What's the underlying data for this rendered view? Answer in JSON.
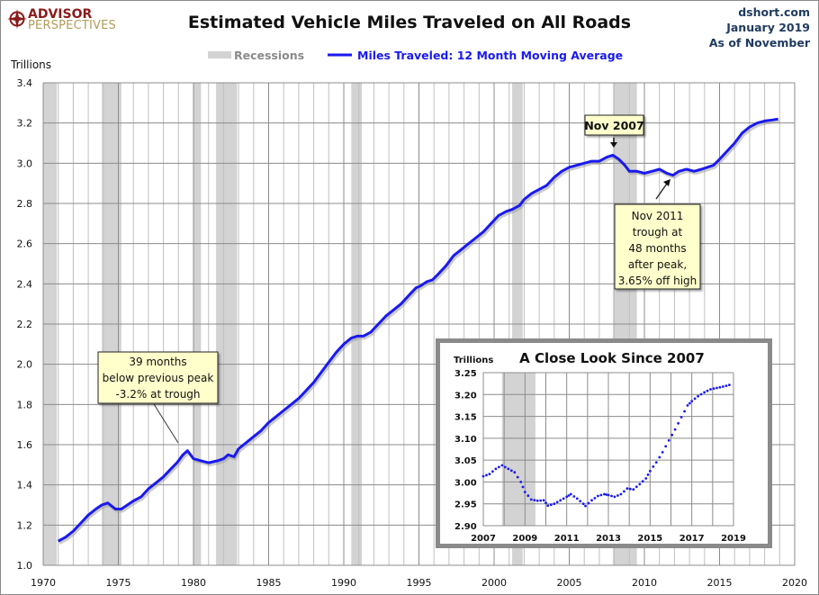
{
  "header": {
    "logo_line1": "ADVISOR",
    "logo_line2": "PERSPECTIVES",
    "source_lines": [
      "dshort.com",
      "January 2019",
      "As of November"
    ]
  },
  "colors": {
    "line": "#1a1aee",
    "recession": "#d3d3d3",
    "grid_minor": "#c0c0c0",
    "grid_major": "#8c8c8c",
    "annotation_bg": "#ffffcc",
    "logo_red": "#8b1a1a",
    "logo_gold": "#b39b5a"
  },
  "chart_data": [
    {
      "type": "line",
      "title": "Estimated Vehicle Miles Traveled on All Roads",
      "ylabel": "Trillions",
      "xlabel": "",
      "xlim": [
        1970,
        2020
      ],
      "ylim": [
        1.0,
        3.4
      ],
      "x_ticks": [
        "1970",
        "1975",
        "1980",
        "1985",
        "1990",
        "1995",
        "2000",
        "2005",
        "2010",
        "2015",
        "2020"
      ],
      "y_ticks": [
        "1.0",
        "1.2",
        "1.4",
        "1.6",
        "1.8",
        "2.0",
        "2.2",
        "2.4",
        "2.6",
        "2.8",
        "3.0",
        "3.2",
        "3.4"
      ],
      "grid": true,
      "legend": {
        "position": "top-center",
        "entries": [
          "Recessions",
          "Miles Traveled: 12 Month Moving Average"
        ]
      },
      "recessions": [
        [
          1969.9,
          1970.9
        ],
        [
          1973.9,
          1975.2
        ],
        [
          1980.0,
          1980.5
        ],
        [
          1981.5,
          1982.9
        ],
        [
          1990.5,
          1991.2
        ],
        [
          2001.2,
          2001.9
        ],
        [
          2007.9,
          2009.5
        ]
      ],
      "series": [
        {
          "name": "Miles Traveled: 12 Month Moving Average",
          "x": [
            1971.0,
            1971.5,
            1972.0,
            1972.5,
            1973.0,
            1973.5,
            1973.9,
            1974.3,
            1974.8,
            1975.2,
            1975.6,
            1976.0,
            1976.5,
            1977.0,
            1977.5,
            1978.0,
            1978.5,
            1978.9,
            1979.3,
            1979.6,
            1980.0,
            1980.5,
            1981.0,
            1981.6,
            1982.0,
            1982.3,
            1982.7,
            1983.0,
            1983.5,
            1984.0,
            1984.5,
            1985.0,
            1985.5,
            1986.0,
            1986.5,
            1987.0,
            1987.5,
            1988.0,
            1988.5,
            1989.0,
            1989.5,
            1990.0,
            1990.5,
            1990.9,
            1991.3,
            1991.8,
            1992.3,
            1992.8,
            1993.3,
            1993.8,
            1994.3,
            1994.8,
            1995.1,
            1995.5,
            1995.9,
            1996.3,
            1996.8,
            1997.3,
            1997.8,
            1998.3,
            1998.8,
            1999.3,
            1999.8,
            2000.3,
            2000.8,
            2001.2,
            2001.7,
            2002.0,
            2002.5,
            2003.0,
            2003.5,
            2004.0,
            2004.5,
            2005.0,
            2005.5,
            2006.0,
            2006.5,
            2007.0,
            2007.5,
            2007.9,
            2008.3,
            2008.7,
            2009.0,
            2009.5,
            2010.0,
            2010.5,
            2011.0,
            2011.5,
            2011.9,
            2012.3,
            2012.8,
            2013.3,
            2013.8,
            2014.2,
            2014.6,
            2015.0,
            2015.5,
            2016.0,
            2016.5,
            2017.0,
            2017.5,
            2018.0,
            2018.5,
            2018.9
          ],
          "y": [
            1.12,
            1.14,
            1.17,
            1.21,
            1.25,
            1.28,
            1.3,
            1.31,
            1.28,
            1.28,
            1.3,
            1.32,
            1.34,
            1.38,
            1.41,
            1.44,
            1.48,
            1.51,
            1.55,
            1.57,
            1.53,
            1.52,
            1.51,
            1.52,
            1.53,
            1.55,
            1.54,
            1.58,
            1.61,
            1.64,
            1.67,
            1.71,
            1.74,
            1.77,
            1.8,
            1.83,
            1.87,
            1.91,
            1.96,
            2.01,
            2.06,
            2.1,
            2.13,
            2.14,
            2.14,
            2.16,
            2.2,
            2.24,
            2.27,
            2.3,
            2.34,
            2.38,
            2.39,
            2.41,
            2.42,
            2.45,
            2.49,
            2.54,
            2.57,
            2.6,
            2.63,
            2.66,
            2.7,
            2.74,
            2.76,
            2.77,
            2.79,
            2.82,
            2.85,
            2.87,
            2.89,
            2.93,
            2.96,
            2.98,
            2.99,
            3.0,
            3.01,
            3.01,
            3.03,
            3.04,
            3.02,
            2.99,
            2.96,
            2.96,
            2.95,
            2.96,
            2.97,
            2.95,
            2.94,
            2.96,
            2.97,
            2.96,
            2.97,
            2.98,
            2.99,
            3.02,
            3.06,
            3.1,
            3.15,
            3.18,
            3.2,
            3.21,
            3.215,
            3.22
          ]
        }
      ],
      "annotations": [
        {
          "lines": [
            "39 months",
            "below previous peak",
            "-3.2% at trough"
          ],
          "points_to": [
            1979.3,
            1.57
          ]
        },
        {
          "lines": [
            "Nov 2007"
          ],
          "points_to": [
            2007.9,
            3.04
          ]
        },
        {
          "lines": [
            "Nov 2011",
            "trough at",
            "48 months",
            "after peak,",
            "3.65% off high"
          ],
          "points_to": [
            2011.9,
            2.94
          ]
        }
      ]
    },
    {
      "type": "scatter",
      "title": "A Close Look Since 2007",
      "ylabel": "Trillions",
      "xlim": [
        2007,
        2019
      ],
      "ylim": [
        2.9,
        3.25
      ],
      "x_ticks": [
        "2007",
        "2009",
        "2011",
        "2013",
        "2015",
        "2017",
        "2019"
      ],
      "y_ticks": [
        "2.90",
        "2.95",
        "3.00",
        "3.05",
        "3.10",
        "3.15",
        "3.20",
        "3.25"
      ],
      "grid": true,
      "recessions": [
        [
          2007.9,
          2009.5
        ]
      ],
      "series": [
        {
          "name": "Miles Traveled: 12 Month Moving Average",
          "x": [
            2007.0,
            2007.3,
            2007.6,
            2007.9,
            2008.2,
            2008.5,
            2008.8,
            2009.0,
            2009.3,
            2009.6,
            2009.9,
            2010.1,
            2010.4,
            2010.7,
            2011.0,
            2011.2,
            2011.5,
            2011.8,
            2011.9,
            2012.2,
            2012.5,
            2012.8,
            2013.0,
            2013.3,
            2013.6,
            2013.9,
            2014.2,
            2014.5,
            2014.8,
            2015.0,
            2015.3,
            2015.6,
            2015.9,
            2016.2,
            2016.5,
            2016.8,
            2017.0,
            2017.3,
            2017.6,
            2017.9,
            2018.2,
            2018.5,
            2018.8
          ],
          "y": [
            3.013,
            3.018,
            3.03,
            3.038,
            3.03,
            3.022,
            3.0,
            2.977,
            2.96,
            2.957,
            2.958,
            2.946,
            2.95,
            2.958,
            2.966,
            2.972,
            2.962,
            2.95,
            2.945,
            2.958,
            2.968,
            2.972,
            2.97,
            2.966,
            2.972,
            2.985,
            2.983,
            2.995,
            3.008,
            3.025,
            3.045,
            3.068,
            3.095,
            3.12,
            3.148,
            3.175,
            3.185,
            3.196,
            3.205,
            3.212,
            3.215,
            3.218,
            3.222
          ]
        }
      ]
    }
  ]
}
